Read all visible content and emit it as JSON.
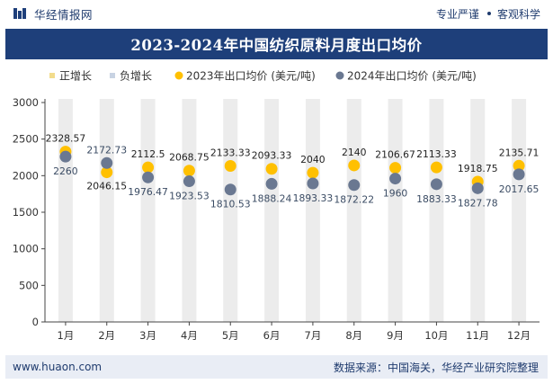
{
  "header": {
    "brand": "华经情报网",
    "tag1": "专业严谨",
    "tag2": "客观科学"
  },
  "title": "2023-2024年中国纺织原料月度出口均价",
  "footer": {
    "site": "www.huaon.com",
    "source": "数据来源：中国海关，华经产业研究院整理"
  },
  "colors": {
    "header_bg": "#1e3f7a",
    "series_2023": "#ffc000",
    "series_2024": "#6a7891",
    "increase": "#f2dc8c",
    "decrease": "#c8d3e3",
    "bar_bg": "#ececec"
  },
  "chart_data": {
    "type": "scatter",
    "title": "2023-2024年中国纺织原料月度出口均价",
    "categories": [
      "1月",
      "2月",
      "3月",
      "4月",
      "5月",
      "6月",
      "7月",
      "8月",
      "9月",
      "10月",
      "11月",
      "12月"
    ],
    "ylim": [
      0,
      3000
    ],
    "yticks": [
      0,
      500,
      1000,
      1500,
      2000,
      2500,
      3000
    ],
    "legend": [
      "正增长",
      "负增长",
      "2023年出口均价 (美元/吨)",
      "2024年出口均价 (美元/吨)"
    ],
    "legend_position": "top",
    "grid": false,
    "series": [
      {
        "name": "2023年出口均价 (美元/吨)",
        "values": [
          2328.57,
          2046.15,
          2112.5,
          2068.75,
          2133.33,
          2093.33,
          2040,
          2140,
          2106.67,
          2113.33,
          1918.75,
          2135.71
        ],
        "labels": [
          "2328.57",
          "2046.15",
          "2112.5",
          "2068.75",
          "2133.33",
          "2093.33",
          "2040",
          "2140",
          "2106.67",
          "2113.33",
          "1918.75",
          "2135.71"
        ]
      },
      {
        "name": "2024年出口均价 (美元/吨)",
        "values": [
          2260,
          2172.73,
          1976.47,
          1923.53,
          1810.53,
          1888.24,
          1893.33,
          1872.22,
          1960,
          1883.33,
          1827.78,
          2017.65
        ],
        "labels": [
          "2260",
          "2172.73",
          "1976.47",
          "1923.53",
          "1810.53",
          "1888.24",
          "1893.33",
          "1872.22",
          "1960",
          "1883.33",
          "1827.78",
          "2017.65"
        ]
      }
    ]
  }
}
